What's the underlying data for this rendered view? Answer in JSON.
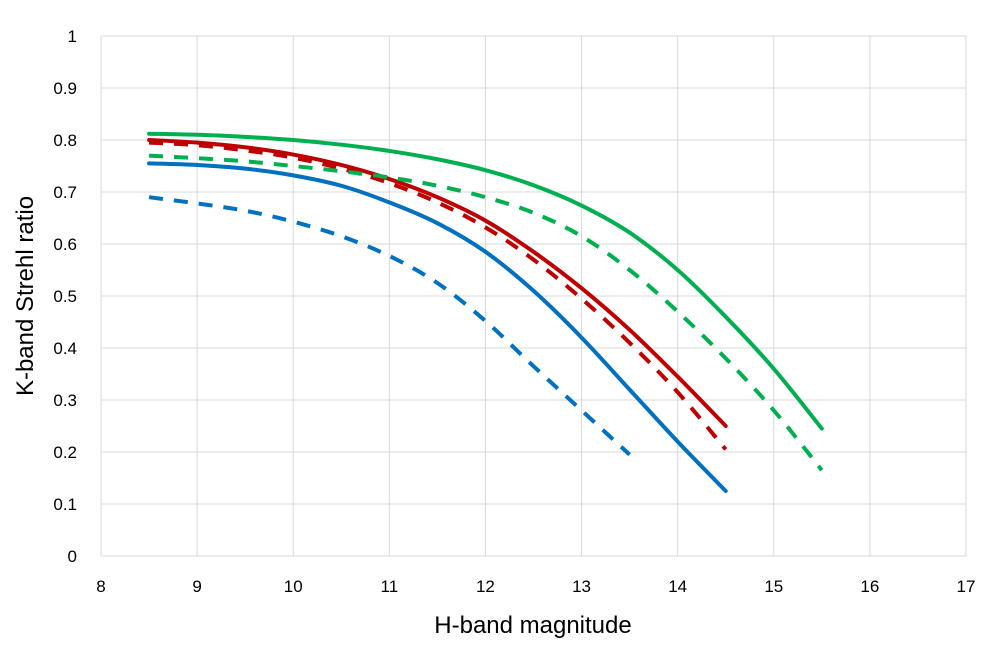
{
  "chart_data": {
    "type": "line",
    "title": "",
    "xlabel": "H-band magnitude",
    "ylabel": "K-band Strehl ratio",
    "xlim": [
      8,
      17
    ],
    "ylim": [
      0,
      1
    ],
    "xticks": [
      "8",
      "9",
      "10",
      "11",
      "12",
      "13",
      "14",
      "15",
      "16",
      "17"
    ],
    "yticks": [
      "0",
      "0.1",
      "0.2",
      "0.3",
      "0.4",
      "0.5",
      "0.6",
      "0.7",
      "0.8",
      "0.9",
      "1"
    ],
    "grid": true,
    "legend": "none",
    "series": [
      {
        "name": "blue solid",
        "color": "#0070c0",
        "dash": "solid",
        "x": [
          8.5,
          9,
          9.5,
          10,
          10.5,
          11,
          11.5,
          12,
          12.5,
          13,
          13.5,
          14,
          14.5
        ],
        "y": [
          0.755,
          0.752,
          0.745,
          0.732,
          0.712,
          0.68,
          0.64,
          0.585,
          0.51,
          0.42,
          0.32,
          0.22,
          0.125
        ]
      },
      {
        "name": "blue dashed",
        "color": "#0070c0",
        "dash": "dashed",
        "x": [
          8.5,
          9,
          9.5,
          10,
          10.5,
          11,
          11.5,
          12,
          12.5,
          13,
          13.5
        ],
        "y": [
          0.69,
          0.678,
          0.664,
          0.643,
          0.615,
          0.577,
          0.525,
          0.452,
          0.365,
          0.28,
          0.195
        ]
      },
      {
        "name": "red solid",
        "color": "#c00000",
        "dash": "solid",
        "x": [
          8.5,
          9,
          9.5,
          10,
          10.5,
          11,
          11.5,
          12,
          12.5,
          13,
          13.5,
          14,
          14.5
        ],
        "y": [
          0.8,
          0.795,
          0.786,
          0.772,
          0.752,
          0.725,
          0.69,
          0.645,
          0.585,
          0.515,
          0.435,
          0.345,
          0.25
        ]
      },
      {
        "name": "red dashed",
        "color": "#c00000",
        "dash": "dashed",
        "x": [
          8.5,
          9,
          9.5,
          10,
          10.5,
          11,
          11.5,
          12,
          12.5,
          13,
          13.5,
          14,
          14.5
        ],
        "y": [
          0.795,
          0.79,
          0.78,
          0.766,
          0.745,
          0.717,
          0.68,
          0.632,
          0.57,
          0.495,
          0.41,
          0.315,
          0.205
        ]
      },
      {
        "name": "green solid",
        "color": "#00b050",
        "dash": "solid",
        "x": [
          8.5,
          9,
          9.5,
          10,
          10.5,
          11,
          11.5,
          12,
          12.5,
          13,
          13.5,
          14,
          14.5,
          15,
          15.5
        ],
        "y": [
          0.812,
          0.81,
          0.806,
          0.8,
          0.791,
          0.779,
          0.763,
          0.742,
          0.713,
          0.674,
          0.622,
          0.55,
          0.46,
          0.36,
          0.245
        ]
      },
      {
        "name": "green dashed",
        "color": "#00b050",
        "dash": "dashed",
        "x": [
          8.5,
          9,
          9.5,
          10,
          10.5,
          11,
          11.5,
          12,
          12.5,
          13,
          13.5,
          14,
          14.5,
          15,
          15.5
        ],
        "y": [
          0.77,
          0.765,
          0.759,
          0.75,
          0.74,
          0.728,
          0.712,
          0.69,
          0.66,
          0.615,
          0.55,
          0.47,
          0.38,
          0.28,
          0.165
        ]
      }
    ]
  }
}
